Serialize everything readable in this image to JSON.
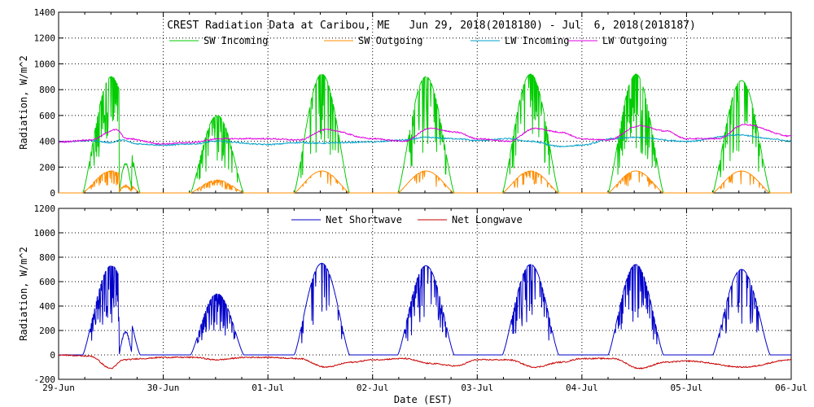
{
  "chart_data": [
    {
      "type": "line",
      "title": "CREST Radiation Data at Caribou, ME   Jun 29, 2018(2018180) - Jul  6, 2018(2018187)",
      "xlabel": "",
      "ylabel": "Radiation, W/m^2",
      "xlim": [
        0,
        7
      ],
      "ylim": [
        0,
        1400
      ],
      "yticks": [
        0,
        200,
        400,
        600,
        800,
        1000,
        1200,
        1400
      ],
      "x_unit": "days since 29-Jun 00:00 EST",
      "legend": "top",
      "grid": true,
      "series": [
        {
          "name": "SW Incoming",
          "color": "#00cc00",
          "days": [
            {
              "rise": 0.23,
              "set": 0.78,
              "peak": 900,
              "cloud": 0.85,
              "notch": [
                0.58,
                0.7
              ]
            },
            {
              "rise": 0.26,
              "set": 0.77,
              "peak": 600,
              "cloud": 0.75
            },
            {
              "rise": 0.25,
              "set": 0.78,
              "peak": 920,
              "cloud": 0.25
            },
            {
              "rise": 0.24,
              "set": 0.78,
              "peak": 900,
              "cloud": 0.6
            },
            {
              "rise": 0.24,
              "set": 0.78,
              "peak": 920,
              "cloud": 0.7
            },
            {
              "rise": 0.25,
              "set": 0.78,
              "peak": 920,
              "cloud": 0.6
            },
            {
              "rise": 0.25,
              "set": 0.8,
              "peak": 870,
              "cloud": 0.5
            }
          ]
        },
        {
          "name": "SW Outgoing",
          "color": "#ff8c00",
          "days": [
            {
              "rise": 0.23,
              "set": 0.78,
              "peak": 170,
              "cloud": 0.85,
              "notch": [
                0.58,
                0.7
              ]
            },
            {
              "rise": 0.26,
              "set": 0.77,
              "peak": 100,
              "cloud": 0.75
            },
            {
              "rise": 0.25,
              "set": 0.78,
              "peak": 170,
              "cloud": 0.2
            },
            {
              "rise": 0.24,
              "set": 0.78,
              "peak": 170,
              "cloud": 0.3
            },
            {
              "rise": 0.24,
              "set": 0.78,
              "peak": 170,
              "cloud": 0.3
            },
            {
              "rise": 0.25,
              "set": 0.78,
              "peak": 170,
              "cloud": 0.3
            },
            {
              "rise": 0.25,
              "set": 0.8,
              "peak": 170,
              "cloud": 0.3
            }
          ]
        },
        {
          "name": "LW Incoming",
          "color": "#00a0c8",
          "x": [
            0,
            0.3,
            0.5,
            0.6,
            0.75,
            1.0,
            1.3,
            1.5,
            2.0,
            2.3,
            2.5,
            3.0,
            3.3,
            3.5,
            3.8,
            4.0,
            4.3,
            4.5,
            4.8,
            5.0,
            5.3,
            5.5,
            6.0,
            6.5,
            6.8,
            7.0
          ],
          "y": [
            395,
            405,
            390,
            410,
            380,
            370,
            380,
            400,
            375,
            390,
            385,
            395,
            410,
            430,
            420,
            405,
            420,
            400,
            360,
            370,
            420,
            430,
            400,
            450,
            420,
            400
          ]
        },
        {
          "name": "LW Outgoing",
          "color": "#e000e0",
          "x": [
            0,
            0.3,
            0.55,
            0.65,
            1.0,
            1.25,
            1.55,
            2.0,
            2.3,
            2.55,
            3.0,
            3.3,
            3.55,
            3.8,
            4.0,
            4.3,
            4.55,
            4.8,
            5.0,
            5.25,
            5.55,
            5.8,
            6.0,
            6.3,
            6.55,
            7.0
          ],
          "y": [
            395,
            410,
            490,
            420,
            380,
            390,
            420,
            420,
            410,
            490,
            420,
            400,
            500,
            470,
            420,
            400,
            500,
            470,
            420,
            410,
            520,
            480,
            420,
            420,
            530,
            440
          ]
        }
      ]
    },
    {
      "type": "line",
      "title": "",
      "xlabel": "Date (EST)",
      "ylabel": "Radiation, W/m^2",
      "xlim": [
        0,
        7
      ],
      "ylim": [
        -200,
        1200
      ],
      "yticks": [
        -200,
        0,
        200,
        400,
        600,
        800,
        1000,
        1200
      ],
      "x_unit": "days since 29-Jun 00:00 EST",
      "categories": [
        "29-Jun",
        "30-Jun",
        "01-Jul",
        "02-Jul",
        "03-Jul",
        "04-Jul",
        "05-Jul",
        "06-Jul"
      ],
      "legend": "top",
      "grid": true,
      "series": [
        {
          "name": "Net Shortwave",
          "color": "#0000c8",
          "days": [
            {
              "rise": 0.23,
              "set": 0.78,
              "peak": 730,
              "cloud": 0.85,
              "notch": [
                0.58,
                0.7
              ]
            },
            {
              "rise": 0.26,
              "set": 0.77,
              "peak": 500,
              "cloud": 0.75
            },
            {
              "rise": 0.25,
              "set": 0.78,
              "peak": 750,
              "cloud": 0.25
            },
            {
              "rise": 0.24,
              "set": 0.78,
              "peak": 730,
              "cloud": 0.6
            },
            {
              "rise": 0.24,
              "set": 0.78,
              "peak": 740,
              "cloud": 0.7
            },
            {
              "rise": 0.25,
              "set": 0.78,
              "peak": 740,
              "cloud": 0.6
            },
            {
              "rise": 0.25,
              "set": 0.8,
              "peak": 700,
              "cloud": 0.5
            }
          ]
        },
        {
          "name": "Net Longwave",
          "color": "#c80000",
          "x": [
            0,
            0.3,
            0.5,
            0.62,
            0.8,
            1.0,
            1.3,
            1.5,
            1.8,
            2.0,
            2.3,
            2.55,
            2.8,
            3.0,
            3.3,
            3.55,
            3.8,
            4.0,
            4.3,
            4.55,
            4.8,
            5.0,
            5.3,
            5.55,
            5.8,
            6.0,
            6.55,
            7.0
          ],
          "y": [
            0,
            -10,
            -110,
            -40,
            -30,
            -20,
            -20,
            -40,
            -20,
            -20,
            -30,
            -100,
            -60,
            -40,
            -30,
            -70,
            -90,
            -40,
            -40,
            -100,
            -60,
            -30,
            -30,
            -110,
            -60,
            -50,
            -100,
            -40
          ]
        }
      ]
    }
  ]
}
